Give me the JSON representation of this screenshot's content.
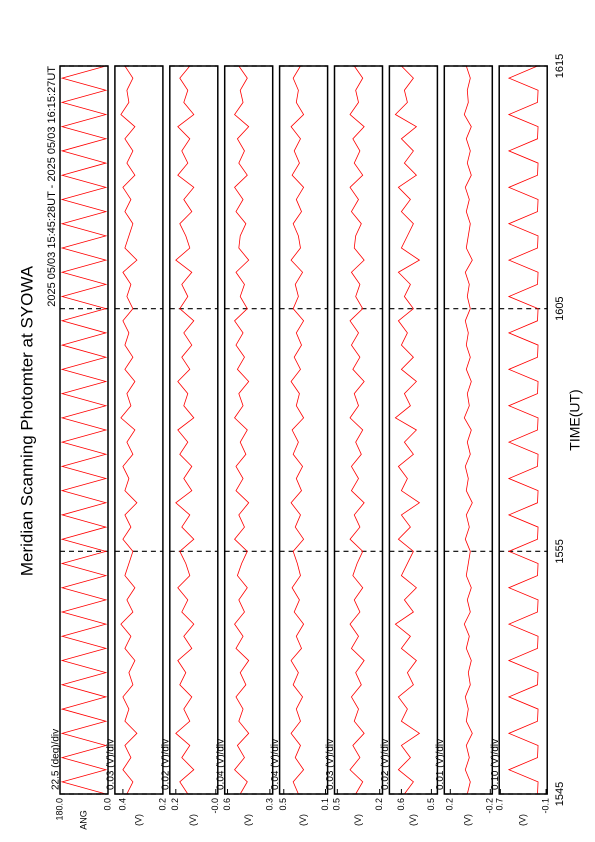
{
  "chart_data": {
    "type": "line",
    "title": "Meridian Scanning Photomter at SYOWA",
    "subtitle": "2025 05/03 15:45:28UT - 2025 05/03 16:15:27UT",
    "xlabel": "TIME(UT)",
    "xlim": [
      0,
      30
    ],
    "xticks": [
      {
        "value": 0,
        "label": "1545"
      },
      {
        "value": 10,
        "label": "1555"
      },
      {
        "value": 20,
        "label": "1605"
      },
      {
        "value": 30,
        "label": "1615"
      }
    ],
    "x": [
      0,
      0.5,
      1,
      1.5,
      2,
      2.5,
      3,
      3.5,
      4,
      4.5,
      5,
      5.5,
      6,
      6.5,
      7,
      7.5,
      8,
      8.5,
      9,
      9.5,
      10,
      10.5,
      11,
      11.5,
      12,
      12.5,
      13,
      13.5,
      14,
      14.5,
      15,
      15.5,
      16,
      16.5,
      17,
      17.5,
      18,
      18.5,
      19,
      19.5,
      20,
      20.5,
      21,
      21.5,
      22,
      22.5,
      23,
      23.5,
      24,
      24.5,
      25,
      25.5,
      26,
      26.5,
      27,
      27.5,
      28,
      28.5,
      29,
      29.5,
      30
    ],
    "panels": [
      {
        "scale_label": "22.5 (deg)/div",
        "ylabel": "ANG",
        "color": "#ff0000",
        "ylim": [
          0,
          180
        ],
        "yticks": [
          {
            "value": 0,
            "label": "0.0"
          },
          {
            "value": 180,
            "label": "180.0"
          }
        ],
        "values": [
          8,
          172,
          8,
          172,
          8,
          172,
          8,
          172,
          8,
          172,
          8,
          172,
          8,
          172,
          8,
          172,
          8,
          172,
          8,
          172,
          8,
          172,
          8,
          172,
          8,
          172,
          8,
          172,
          8,
          172,
          8,
          172,
          8,
          172,
          8,
          172,
          8,
          172,
          8,
          172,
          8,
          172,
          8,
          172,
          8,
          172,
          8,
          172,
          8,
          172,
          8,
          172,
          8,
          172,
          8,
          172,
          8,
          172,
          8,
          172,
          8
        ]
      },
      {
        "scale_label": "0.03 (V)/div",
        "ylabel": "(V)",
        "color": "#ff0000",
        "ylim": [
          0.2,
          0.44
        ],
        "yticks": [
          0.2,
          0.4
        ],
        "values": [
          0.38,
          0.35,
          0.4,
          0.36,
          0.39,
          0.33,
          0.39,
          0.37,
          0.4,
          0.35,
          0.37,
          0.34,
          0.39,
          0.36,
          0.41,
          0.35,
          0.38,
          0.34,
          0.39,
          0.37,
          0.35,
          0.4,
          0.36,
          0.39,
          0.33,
          0.39,
          0.37,
          0.4,
          0.35,
          0.38,
          0.34,
          0.41,
          0.36,
          0.38,
          0.34,
          0.39,
          0.35,
          0.39,
          0.37,
          0.4,
          0.35,
          0.38,
          0.36,
          0.4,
          0.33,
          0.39,
          0.37,
          0.35,
          0.39,
          0.36,
          0.4,
          0.34,
          0.38,
          0.35,
          0.39,
          0.34,
          0.41,
          0.37,
          0.38,
          0.35,
          0.39
        ]
      },
      {
        "scale_label": "0.02 (V)/div",
        "ylabel": "(V)",
        "color": "#ff0000",
        "ylim": [
          -0.01,
          0.23
        ],
        "yticks": [
          {
            "value": 0,
            "label": "-0.0"
          },
          0.2
        ],
        "values": [
          0.14,
          0.18,
          0.11,
          0.17,
          0.13,
          0.2,
          0.13,
          0.16,
          0.12,
          0.18,
          0.15,
          0.19,
          0.12,
          0.16,
          0.11,
          0.17,
          0.14,
          0.19,
          0.13,
          0.15,
          0.18,
          0.11,
          0.17,
          0.13,
          0.2,
          0.12,
          0.16,
          0.12,
          0.18,
          0.14,
          0.19,
          0.11,
          0.16,
          0.14,
          0.19,
          0.13,
          0.17,
          0.12,
          0.16,
          0.11,
          0.18,
          0.14,
          0.17,
          0.12,
          0.2,
          0.13,
          0.15,
          0.18,
          0.12,
          0.16,
          0.11,
          0.19,
          0.14,
          0.17,
          0.13,
          0.19,
          0.11,
          0.16,
          0.14,
          0.18,
          0.13
        ]
      },
      {
        "scale_label": "0.04 (V)/div",
        "ylabel": "(V)",
        "color": "#ff0000",
        "ylim": [
          0.28,
          0.62
        ],
        "yticks": [
          0.3,
          0.6
        ],
        "values": [
          0.51,
          0.46,
          0.55,
          0.48,
          0.53,
          0.45,
          0.52,
          0.49,
          0.54,
          0.47,
          0.51,
          0.45,
          0.54,
          0.49,
          0.55,
          0.48,
          0.52,
          0.46,
          0.53,
          0.5,
          0.46,
          0.55,
          0.48,
          0.52,
          0.45,
          0.54,
          0.49,
          0.54,
          0.47,
          0.51,
          0.46,
          0.55,
          0.49,
          0.52,
          0.45,
          0.53,
          0.48,
          0.54,
          0.49,
          0.55,
          0.46,
          0.51,
          0.48,
          0.54,
          0.45,
          0.52,
          0.51,
          0.47,
          0.54,
          0.49,
          0.55,
          0.46,
          0.52,
          0.48,
          0.53,
          0.45,
          0.55,
          0.49,
          0.51,
          0.46,
          0.52
        ]
      },
      {
        "scale_label": "0.04 (V)/div",
        "ylabel": "(V)",
        "color": "#ff0000",
        "ylim": [
          0.08,
          0.54
        ],
        "yticks": [
          0.1,
          0.5
        ],
        "values": [
          0.36,
          0.41,
          0.31,
          0.39,
          0.34,
          0.43,
          0.34,
          0.38,
          0.32,
          0.41,
          0.36,
          0.43,
          0.33,
          0.38,
          0.31,
          0.4,
          0.35,
          0.42,
          0.34,
          0.37,
          0.41,
          0.31,
          0.39,
          0.34,
          0.43,
          0.33,
          0.38,
          0.32,
          0.41,
          0.36,
          0.42,
          0.31,
          0.38,
          0.35,
          0.43,
          0.34,
          0.4,
          0.33,
          0.38,
          0.31,
          0.41,
          0.36,
          0.39,
          0.32,
          0.43,
          0.34,
          0.36,
          0.41,
          0.33,
          0.38,
          0.31,
          0.42,
          0.35,
          0.4,
          0.34,
          0.43,
          0.31,
          0.38,
          0.36,
          0.41,
          0.34
        ]
      },
      {
        "scale_label": "0.03 (V)/div",
        "ylabel": "(V)",
        "color": "#ff0000",
        "ylim": [
          0.18,
          0.52
        ],
        "yticks": [
          0.2,
          0.5
        ],
        "values": [
          0.37,
          0.32,
          0.41,
          0.34,
          0.39,
          0.31,
          0.38,
          0.35,
          0.4,
          0.33,
          0.37,
          0.31,
          0.4,
          0.35,
          0.41,
          0.34,
          0.38,
          0.32,
          0.39,
          0.36,
          0.32,
          0.41,
          0.34,
          0.38,
          0.31,
          0.4,
          0.35,
          0.4,
          0.33,
          0.37,
          0.32,
          0.41,
          0.35,
          0.38,
          0.31,
          0.39,
          0.34,
          0.4,
          0.35,
          0.41,
          0.32,
          0.37,
          0.34,
          0.4,
          0.31,
          0.38,
          0.37,
          0.33,
          0.4,
          0.35,
          0.41,
          0.32,
          0.38,
          0.34,
          0.39,
          0.31,
          0.41,
          0.35,
          0.37,
          0.32,
          0.38
        ]
      },
      {
        "scale_label": "0.02 (V)/div",
        "ylabel": "(V)",
        "color": "#ff0000",
        "ylim": [
          0.48,
          0.64
        ],
        "yticks": [
          0.5,
          0.6
        ],
        "values": [
          0.59,
          0.56,
          0.61,
          0.57,
          0.6,
          0.54,
          0.6,
          0.58,
          0.61,
          0.56,
          0.58,
          0.55,
          0.6,
          0.57,
          0.62,
          0.56,
          0.59,
          0.55,
          0.6,
          0.58,
          0.56,
          0.61,
          0.57,
          0.6,
          0.54,
          0.6,
          0.58,
          0.61,
          0.56,
          0.59,
          0.55,
          0.62,
          0.57,
          0.59,
          0.55,
          0.6,
          0.56,
          0.6,
          0.58,
          0.61,
          0.56,
          0.59,
          0.57,
          0.61,
          0.54,
          0.6,
          0.58,
          0.56,
          0.6,
          0.57,
          0.61,
          0.55,
          0.59,
          0.56,
          0.6,
          0.55,
          0.62,
          0.58,
          0.59,
          0.56,
          0.6
        ]
      },
      {
        "scale_label": "0.01 (V)/div",
        "ylabel": "(V)",
        "color": "#ff0000",
        "ylim": [
          -0.22,
          0.26
        ],
        "yticks": [
          -0.2,
          0.2
        ],
        "values": [
          0.03,
          0.0,
          0.05,
          0.01,
          0.04,
          -0.02,
          0.04,
          0.02,
          0.05,
          0.0,
          0.02,
          -0.01,
          0.04,
          0.01,
          0.06,
          0.0,
          0.03,
          -0.01,
          0.04,
          0.02,
          0.0,
          0.05,
          0.01,
          0.04,
          -0.02,
          0.04,
          0.02,
          0.05,
          0.0,
          0.03,
          -0.01,
          0.06,
          0.01,
          0.03,
          -0.01,
          0.04,
          0.0,
          0.04,
          0.02,
          0.05,
          0.0,
          0.03,
          0.01,
          0.05,
          -0.02,
          0.04,
          0.02,
          0.0,
          0.04,
          0.01,
          0.05,
          -0.01,
          0.03,
          0.0,
          0.04,
          -0.01,
          0.06,
          0.02,
          0.03,
          0.0,
          0.04
        ]
      },
      {
        "scale_label": "0.10 (V)/div",
        "ylabel": "(V)",
        "color": "#ff0000",
        "ylim": [
          -0.12,
          0.72
        ],
        "yticks": [
          -0.1,
          0.7
        ],
        "values": [
          0.05,
          0.04,
          0.55,
          0.05,
          0.04,
          0.55,
          0.05,
          0.04,
          0.55,
          0.05,
          0.04,
          0.55,
          0.05,
          0.04,
          0.55,
          0.05,
          0.04,
          0.55,
          0.05,
          0.04,
          0.55,
          0.05,
          0.04,
          0.55,
          0.05,
          0.04,
          0.55,
          0.05,
          0.04,
          0.55,
          0.05,
          0.04,
          0.55,
          0.05,
          0.04,
          0.55,
          0.05,
          0.04,
          0.55,
          0.05,
          0.04,
          0.55,
          0.05,
          0.04,
          0.55,
          0.05,
          0.04,
          0.55,
          0.05,
          0.04,
          0.55,
          0.05,
          0.04,
          0.55,
          0.05,
          0.04,
          0.55,
          0.05,
          0.04,
          0.55,
          0.05
        ]
      }
    ]
  }
}
